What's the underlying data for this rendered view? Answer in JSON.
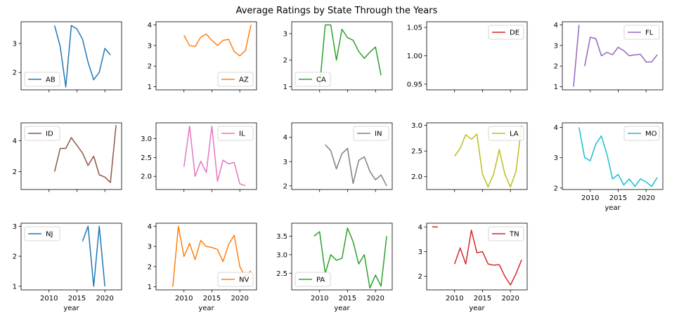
{
  "title": "Average Ratings by State Through the Years",
  "chart_data": {
    "type": "line",
    "title": "Average Ratings by State Through the Years",
    "subplots": [
      {
        "name": "AB",
        "color": "#1f77b4",
        "legend": "lower left",
        "xlim": [
          2005,
          2023
        ],
        "yticks": [
          {
            "v": 2,
            "label": "2"
          },
          {
            "v": 3,
            "label": "3"
          }
        ],
        "ylim": [
          1.4,
          3.75
        ],
        "x": [
          2011,
          2012,
          2013,
          2014,
          2015,
          2016,
          2017,
          2018,
          2019,
          2020,
          2021
        ],
        "y": [
          3.62,
          2.9,
          1.5,
          3.62,
          3.5,
          3.15,
          2.35,
          1.75,
          2.0,
          2.83,
          2.6
        ]
      },
      {
        "name": "AZ",
        "color": "#ff7f0e",
        "legend": "lower right",
        "xlim": [
          2005,
          2023
        ],
        "yticks": [
          {
            "v": 1,
            "label": "1"
          },
          {
            "v": 2,
            "label": "2"
          },
          {
            "v": 3,
            "label": "3"
          },
          {
            "v": 4,
            "label": "4"
          }
        ],
        "ylim": [
          0.85,
          4.15
        ],
        "x": [
          2010,
          2011,
          2012,
          2013,
          2014,
          2015,
          2016,
          2017,
          2018,
          2019,
          2020,
          2021,
          2022
        ],
        "y": [
          3.5,
          3.0,
          2.95,
          3.4,
          3.55,
          3.25,
          3.0,
          3.25,
          3.3,
          2.7,
          2.5,
          2.75,
          4.0
        ]
      },
      {
        "name": "CA",
        "color": "#2ca02c",
        "legend": "lower left",
        "xlim": [
          2005,
          2023
        ],
        "yticks": [
          {
            "v": 1,
            "label": "1"
          },
          {
            "v": 2,
            "label": "2"
          },
          {
            "v": 3,
            "label": "3"
          }
        ],
        "ylim": [
          0.88,
          3.45
        ],
        "x": [
          2010,
          2011,
          2012,
          2013,
          2014,
          2015,
          2016,
          2017,
          2018,
          2019,
          2020,
          2021
        ],
        "y": [
          1.0,
          3.33,
          3.33,
          2.0,
          3.17,
          2.85,
          2.75,
          2.33,
          2.07,
          2.3,
          2.5,
          1.43
        ]
      },
      {
        "name": "DE",
        "color": "#d62728",
        "legend": "upper right",
        "xlim": [
          2005,
          2023
        ],
        "yticks": [
          {
            "v": 0.95,
            "label": "0.95"
          },
          {
            "v": 1.0,
            "label": "1.00"
          },
          {
            "v": 1.05,
            "label": "1.05"
          }
        ],
        "ylim": [
          0.94,
          1.06
        ],
        "x": [],
        "y": []
      },
      {
        "name": "FL",
        "color": "#9467bd",
        "legend": "upper right",
        "xlim": [
          2005,
          2023
        ],
        "yticks": [
          {
            "v": 1,
            "label": "1"
          },
          {
            "v": 2,
            "label": "2"
          },
          {
            "v": 3,
            "label": "3"
          },
          {
            "v": 4,
            "label": "4"
          }
        ],
        "ylim": [
          0.85,
          4.15
        ],
        "x": [
          2007,
          2008,
          null,
          2009,
          2010,
          2011,
          2012,
          2013,
          2014,
          2015,
          2016,
          2017,
          2018,
          2019,
          2020,
          2021,
          2022
        ],
        "y": [
          1.0,
          4.0,
          null,
          2.0,
          3.4,
          3.33,
          2.5,
          2.67,
          2.55,
          2.92,
          2.75,
          2.5,
          2.55,
          2.57,
          2.2,
          2.2,
          2.55
        ]
      },
      {
        "name": "ID",
        "color": "#8c564b",
        "legend": "upper left",
        "xlim": [
          2005,
          2023
        ],
        "yticks": [
          {
            "v": 2,
            "label": "2"
          },
          {
            "v": 4,
            "label": "4"
          }
        ],
        "ylim": [
          0.85,
          5.15
        ],
        "x": [
          2011,
          2012,
          2013,
          2014,
          2015,
          2016,
          2017,
          2018,
          2019,
          2020,
          2021,
          2022
        ],
        "y": [
          2.0,
          3.5,
          3.5,
          4.2,
          3.7,
          3.2,
          2.4,
          3.0,
          1.8,
          1.65,
          1.3,
          5.0
        ]
      },
      {
        "name": "IL",
        "color": "#e377c2",
        "legend": "upper right",
        "xlim": [
          2005,
          2023
        ],
        "yticks": [
          {
            "v": 2.0,
            "label": "2.0"
          },
          {
            "v": 2.5,
            "label": "2.5"
          },
          {
            "v": 3.0,
            "label": "3.0"
          }
        ],
        "ylim": [
          1.65,
          3.42
        ],
        "x": [
          2010,
          2011,
          2012,
          2013,
          2014,
          2015,
          2016,
          2017,
          2018,
          2019,
          2020,
          2021
        ],
        "y": [
          2.25,
          3.33,
          2.0,
          2.4,
          2.1,
          3.33,
          1.87,
          2.43,
          2.33,
          2.37,
          1.8,
          1.75
        ]
      },
      {
        "name": "IN",
        "color": "#7f7f7f",
        "legend": "upper right",
        "xlim": [
          2005,
          2023
        ],
        "yticks": [
          {
            "v": 2,
            "label": "2"
          },
          {
            "v": 3,
            "label": "3"
          },
          {
            "v": 4,
            "label": "4"
          }
        ],
        "ylim": [
          1.85,
          4.6
        ],
        "x": [
          2011,
          2012,
          2013,
          2014,
          2015,
          2016,
          2017,
          2018,
          2019,
          2020,
          2021,
          2022
        ],
        "y": [
          3.7,
          3.45,
          2.7,
          3.33,
          3.55,
          2.1,
          3.05,
          3.2,
          2.6,
          2.25,
          2.45,
          2.0
        ]
      },
      {
        "name": "LA",
        "color": "#bcbd22",
        "legend": "upper right",
        "xlim": [
          2005,
          2023
        ],
        "yticks": [
          {
            "v": 2.0,
            "label": "2.0"
          },
          {
            "v": 2.5,
            "label": "2.5"
          },
          {
            "v": 3.0,
            "label": "3.0"
          }
        ],
        "ylim": [
          1.75,
          3.05
        ],
        "x": [
          2010,
          2011,
          2012,
          2013,
          2014,
          2015,
          2016,
          2017,
          2018,
          2019,
          2020,
          2021,
          2022
        ],
        "y": [
          2.4,
          2.55,
          2.82,
          2.73,
          2.83,
          2.05,
          1.8,
          2.05,
          2.53,
          2.05,
          1.8,
          2.1,
          3.0
        ]
      },
      {
        "name": "MO",
        "color": "#17becf",
        "legend": "upper right",
        "xlim": [
          2005,
          2023
        ],
        "yticks": [
          {
            "v": 2,
            "label": "2"
          },
          {
            "v": 3,
            "label": "3"
          },
          {
            "v": 4,
            "label": "4"
          }
        ],
        "ylim": [
          1.95,
          4.15
        ],
        "x": [
          2008,
          2009,
          2010,
          2011,
          2012,
          2013,
          2014,
          2015,
          2016,
          2017,
          2018,
          2019,
          2020,
          2021,
          2022
        ],
        "y": [
          4.0,
          3.0,
          2.9,
          3.45,
          3.72,
          3.1,
          2.3,
          2.45,
          2.1,
          2.3,
          2.05,
          2.3,
          2.2,
          2.05,
          2.35
        ]
      },
      {
        "name": "NJ",
        "color": "#1f77b4",
        "legend": "upper left",
        "xlim": [
          2005,
          2023
        ],
        "yticks": [
          {
            "v": 1,
            "label": "1"
          },
          {
            "v": 2,
            "label": "2"
          },
          {
            "v": 3,
            "label": "3"
          }
        ],
        "ylim": [
          0.88,
          3.1
        ],
        "x": [
          2016,
          2017,
          2018,
          2019,
          2020
        ],
        "y": [
          2.5,
          3.0,
          1.0,
          3.0,
          1.0
        ]
      },
      {
        "name": "NV",
        "color": "#ff7f0e",
        "legend": "lower right",
        "xlim": [
          2005,
          2023
        ],
        "yticks": [
          {
            "v": 1,
            "label": "1"
          },
          {
            "v": 2,
            "label": "2"
          },
          {
            "v": 3,
            "label": "3"
          },
          {
            "v": 4,
            "label": "4"
          }
        ],
        "ylim": [
          0.85,
          4.15
        ],
        "x": [
          2008,
          2009,
          2010,
          2011,
          2012,
          2013,
          2014,
          2015,
          2016,
          2017,
          2018,
          2019,
          2020,
          2021,
          2022
        ],
        "y": [
          1.0,
          4.0,
          2.5,
          3.15,
          2.35,
          3.3,
          3.0,
          2.95,
          2.85,
          2.25,
          3.1,
          3.55,
          2.0,
          1.5,
          1.8
        ]
      },
      {
        "name": "PA",
        "color": "#2ca02c",
        "legend": "lower left",
        "xlim": [
          2005,
          2023
        ],
        "yticks": [
          {
            "v": 2.5,
            "label": "2.5"
          },
          {
            "v": 3.0,
            "label": "3.0"
          },
          {
            "v": 3.5,
            "label": "3.5"
          }
        ],
        "ylim": [
          2.05,
          3.85
        ],
        "x": [
          2009,
          2010,
          2011,
          2012,
          2013,
          2014,
          2015,
          2016,
          2017,
          2018,
          2019,
          2020,
          2021,
          2022
        ],
        "y": [
          3.5,
          3.62,
          2.5,
          3.0,
          2.85,
          2.9,
          3.72,
          3.35,
          2.75,
          3.0,
          2.1,
          2.45,
          2.15,
          3.5
        ]
      },
      {
        "name": "TN",
        "color": "#d62728",
        "legend": "upper right",
        "xlim": [
          2005,
          2023
        ],
        "yticks": [
          {
            "v": 2,
            "label": "2"
          },
          {
            "v": 3,
            "label": "3"
          },
          {
            "v": 4,
            "label": "4"
          }
        ],
        "ylim": [
          1.45,
          4.15
        ],
        "x": [
          2006,
          2007,
          null,
          2010,
          2011,
          2012,
          2013,
          2014,
          2015,
          2016,
          2017,
          2018,
          2019,
          2020,
          2021,
          2022
        ],
        "y": [
          4.0,
          4.0,
          null,
          2.5,
          3.15,
          2.5,
          3.87,
          2.95,
          3.0,
          2.5,
          2.45,
          2.47,
          2.0,
          1.65,
          2.1,
          2.67
        ]
      }
    ],
    "xticks": [
      2010,
      2015,
      2020
    ],
    "xlabel": "year",
    "grid": false,
    "layout": "3 rows x 5 columns"
  }
}
